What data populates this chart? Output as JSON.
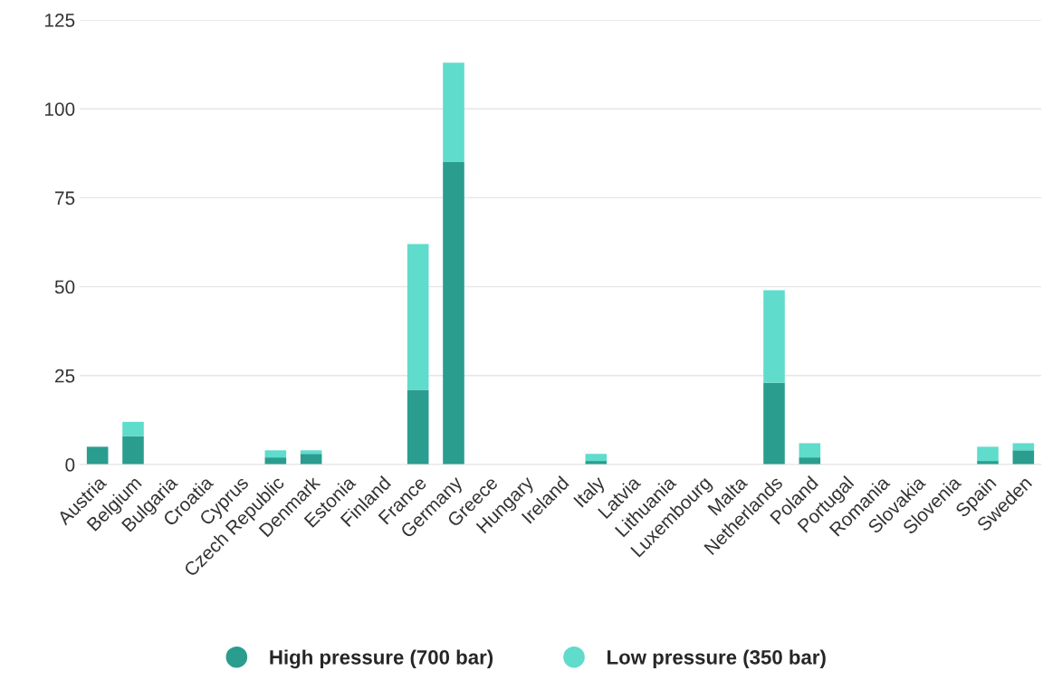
{
  "chart_data": {
    "type": "bar",
    "stacked": true,
    "categories": [
      "Austria",
      "Belgium",
      "Bulgaria",
      "Croatia",
      "Cyprus",
      "Czech Republic",
      "Denmark",
      "Estonia",
      "Finland",
      "France",
      "Germany",
      "Greece",
      "Hungary",
      "Ireland",
      "Italy",
      "Latvia",
      "Lithuania",
      "Luxembourg",
      "Malta",
      "Netherlands",
      "Poland",
      "Portugal",
      "Romania",
      "Slovakia",
      "Slovenia",
      "Spain",
      "Sweden"
    ],
    "series": [
      {
        "name": "High pressure (700 bar)",
        "color": "#2a9d8f",
        "values": [
          5,
          8,
          0,
          0,
          0,
          2,
          3,
          0,
          0,
          21,
          85,
          0,
          0,
          0,
          1,
          0,
          0,
          0,
          0,
          23,
          2,
          0,
          0,
          0,
          0,
          1,
          4
        ]
      },
      {
        "name": "Low pressure (350 bar)",
        "color": "#5fdccb",
        "values": [
          0,
          4,
          0,
          0,
          0,
          2,
          1,
          0,
          0,
          41,
          28,
          0,
          0,
          0,
          2,
          0,
          0,
          0,
          0,
          26,
          4,
          0,
          0,
          0,
          0,
          4,
          2
        ]
      }
    ],
    "ylim": [
      0,
      125
    ],
    "yticks": [
      0,
      25,
      50,
      75,
      100,
      125
    ],
    "grid": "y",
    "legend": "bottom"
  }
}
